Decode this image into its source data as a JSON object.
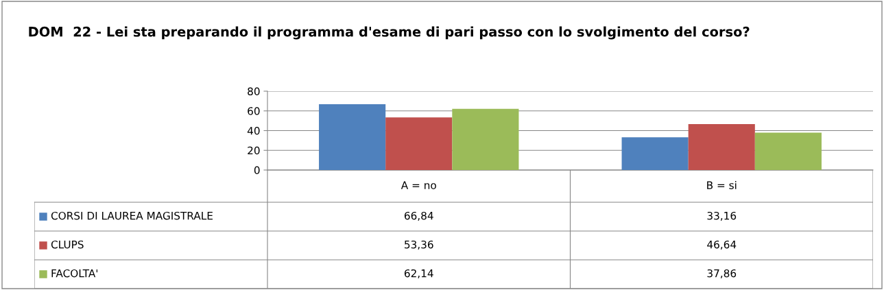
{
  "chart_data": {
    "type": "bar",
    "title": "DOM  22 - Lei sta preparando il programma d'esame di pari passo con lo svolgimento del corso?",
    "categories": [
      "A = no",
      "B = si"
    ],
    "series": [
      {
        "name": "CORSI DI LAUREA MAGISTRALE",
        "color": "#4f81bd",
        "values": [
          66.84,
          33.16
        ],
        "value_labels": [
          "66,84",
          "33,16"
        ]
      },
      {
        "name": "CLUPS",
        "color": "#c0504d",
        "values": [
          53.36,
          46.64
        ],
        "value_labels": [
          "53,36",
          "46,64"
        ]
      },
      {
        "name": "FACOLTA'",
        "color": "#9bbb59",
        "values": [
          62.14,
          37.86
        ],
        "value_labels": [
          "62,14",
          "37,86"
        ]
      }
    ],
    "legend": "bottom",
    "ylim": [
      0,
      80
    ],
    "yticks": [
      0,
      20,
      40,
      60,
      80
    ],
    "grid": "y"
  }
}
